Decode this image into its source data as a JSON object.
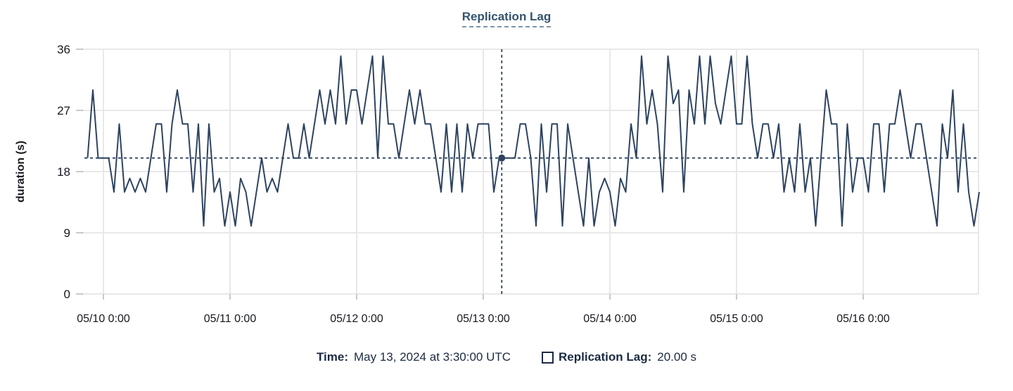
{
  "chart_data": {
    "type": "line",
    "title": "Replication Lag",
    "ylabel": "duration (s)",
    "xlabel": "",
    "ylim": [
      0,
      36
    ],
    "y_ticks": [
      36,
      27,
      18,
      9,
      0
    ],
    "x_ticks": [
      "05/10 0:00",
      "05/11 0:00",
      "05/12 0:00",
      "05/13 0:00",
      "05/14 0:00",
      "05/15 0:00",
      "05/16 0:00"
    ],
    "grid": "on",
    "legend_position": "bottom",
    "series": [
      {
        "name": "Replication Lag",
        "unit": "s",
        "start": "05/09 21:00",
        "interval_hours": 1,
        "values": [
          20,
          30,
          20,
          20,
          20,
          15,
          25,
          15,
          17,
          15,
          17,
          15,
          20,
          25,
          25,
          15,
          25,
          30,
          25,
          25,
          15,
          25,
          10,
          25,
          15,
          17,
          10,
          15,
          10,
          17,
          15,
          10,
          15,
          20,
          15,
          17,
          15,
          20,
          25,
          20,
          20,
          25,
          20,
          25,
          30,
          25,
          30,
          25,
          35,
          25,
          30,
          30,
          25,
          30,
          35,
          20,
          35,
          25,
          25,
          20,
          25,
          30,
          25,
          30,
          25,
          25,
          20,
          15,
          25,
          15,
          25,
          15,
          25,
          20,
          25,
          25,
          25,
          15,
          20,
          20,
          20,
          20,
          25,
          25,
          20,
          10,
          25,
          15,
          25,
          25,
          10,
          25,
          20,
          15,
          10,
          20,
          10,
          15,
          17,
          15,
          10,
          17,
          15,
          25,
          20,
          35,
          25,
          30,
          25,
          15,
          35,
          28,
          30,
          15,
          30,
          25,
          35,
          25,
          35,
          28,
          25,
          30,
          35,
          25,
          25,
          35,
          25,
          20,
          25,
          25,
          20,
          25,
          15,
          20,
          15,
          25,
          15,
          20,
          10,
          20,
          30,
          25,
          25,
          10,
          25,
          15,
          20,
          20,
          15,
          25,
          25,
          15,
          25,
          25,
          30,
          25,
          20,
          25,
          25,
          20,
          15,
          10,
          25,
          20,
          30,
          15,
          25,
          15,
          10,
          15
        ]
      }
    ],
    "crosshair": {
      "x_tick_index": 3,
      "hours_after_tick": 3.5,
      "value": 20,
      "time_label": "May 13, 2024 at 3:30:00 UTC",
      "value_label": "20.00 s"
    },
    "colors": {
      "line": "#2e4360",
      "crosshair": "#2e4360",
      "grid": "#e8e8e8",
      "tick": "#c9c9c9",
      "axis_text": "#16191f",
      "title": "#33536e",
      "tooltip_text": "#1c2b42"
    }
  },
  "tooltip": {
    "time_label": "Time:",
    "time_value": "May 13, 2024 at 3:30:00 UTC",
    "series_label": "Replication Lag:",
    "series_value": "20.00 s"
  }
}
